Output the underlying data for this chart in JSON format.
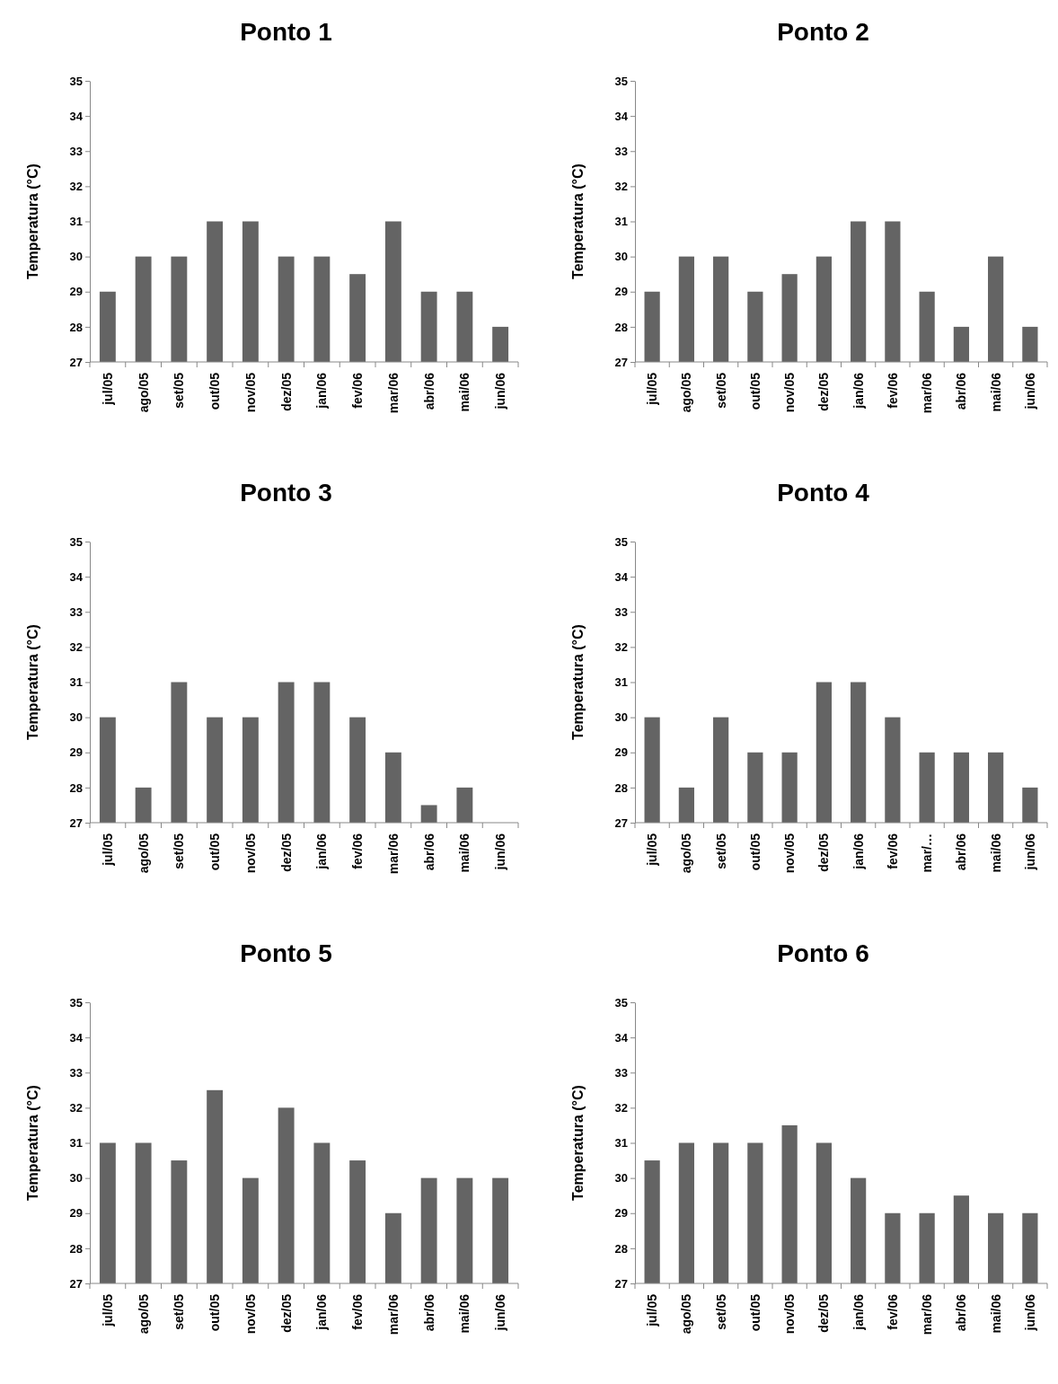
{
  "chart_data": [
    {
      "type": "bar",
      "title": "Ponto 1",
      "ylabel": "Temperatura (°C)",
      "categories": [
        "jul/05",
        "ago/05",
        "set/05",
        "out/05",
        "nov/05",
        "dez/05",
        "jan/06",
        "fev/06",
        "mar/06",
        "abr/06",
        "mai/06",
        "jun/06"
      ],
      "values": [
        29,
        30,
        30,
        31,
        31,
        30,
        30,
        29.5,
        31,
        29,
        29,
        28
      ],
      "color": "#646464",
      "ylim": [
        27,
        35
      ],
      "yticks": [
        27,
        28,
        29,
        30,
        31,
        32,
        33,
        34,
        35
      ],
      "grid": false
    },
    {
      "type": "bar",
      "title": "Ponto 2",
      "ylabel": "Temperatura (°C)",
      "categories": [
        "jul/05",
        "ago/05",
        "set/05",
        "out/05",
        "nov/05",
        "dez/05",
        "jan/06",
        "fev/06",
        "mar/06",
        "abr/06",
        "mai/06",
        "jun/06"
      ],
      "values": [
        29,
        30,
        30,
        29,
        29.5,
        30,
        31,
        31,
        29,
        28,
        30,
        28
      ],
      "color": "#646464",
      "ylim": [
        27,
        35
      ],
      "yticks": [
        27,
        28,
        29,
        30,
        31,
        32,
        33,
        34,
        35
      ],
      "grid": false
    },
    {
      "type": "bar",
      "title": "Ponto 3",
      "ylabel": "Temperatura (°C)",
      "categories": [
        "jul/05",
        "ago/05",
        "set/05",
        "out/05",
        "nov/05",
        "dez/05",
        "jan/06",
        "fev/06",
        "mar/06",
        "abr/06",
        "mai/06",
        "jun/06"
      ],
      "values": [
        30,
        28,
        31,
        30,
        30,
        31,
        31,
        30,
        29,
        27.5,
        28,
        null
      ],
      "color": "#646464",
      "ylim": [
        27,
        35
      ],
      "yticks": [
        27,
        28,
        29,
        30,
        31,
        32,
        33,
        34,
        35
      ],
      "grid": false
    },
    {
      "type": "bar",
      "title": "Ponto 4",
      "ylabel": "Temperatura (°C)",
      "categories": [
        "jul/05",
        "ago/05",
        "set/05",
        "out/05",
        "nov/05",
        "dez/05",
        "jan/06",
        "fev/06",
        "mar/…",
        "abr/06",
        "mai/06",
        "jun/06"
      ],
      "values": [
        30,
        28,
        30,
        29,
        29,
        31,
        31,
        30,
        29,
        29,
        29,
        28
      ],
      "color": "#646464",
      "ylim": [
        27,
        35
      ],
      "yticks": [
        27,
        28,
        29,
        30,
        31,
        32,
        33,
        34,
        35
      ],
      "grid": false
    },
    {
      "type": "bar",
      "title": "Ponto 5",
      "ylabel": "Temperatura (°C)",
      "categories": [
        "jul/05",
        "ago/05",
        "set/05",
        "out/05",
        "nov/05",
        "dez/05",
        "jan/06",
        "fev/06",
        "mar/06",
        "abr/06",
        "mai/06",
        "jun/06"
      ],
      "values": [
        31,
        31,
        30.5,
        32.5,
        30,
        32,
        31,
        30.5,
        29,
        30,
        30,
        30
      ],
      "color": "#646464",
      "ylim": [
        27,
        35
      ],
      "yticks": [
        27,
        28,
        29,
        30,
        31,
        32,
        33,
        34,
        35
      ],
      "grid": false
    },
    {
      "type": "bar",
      "title": "Ponto 6",
      "ylabel": "Temperatura (°C)",
      "categories": [
        "jul/05",
        "ago/05",
        "set/05",
        "out/05",
        "nov/05",
        "dez/05",
        "jan/06",
        "fev/06",
        "mar/06",
        "abr/06",
        "mai/06",
        "jun/06"
      ],
      "values": [
        30.5,
        31,
        31,
        31,
        31.5,
        31,
        30,
        29,
        29,
        29.5,
        29,
        29
      ],
      "color": "#646464",
      "ylim": [
        27,
        35
      ],
      "yticks": [
        27,
        28,
        29,
        30,
        31,
        32,
        33,
        34,
        35
      ],
      "grid": false
    }
  ]
}
